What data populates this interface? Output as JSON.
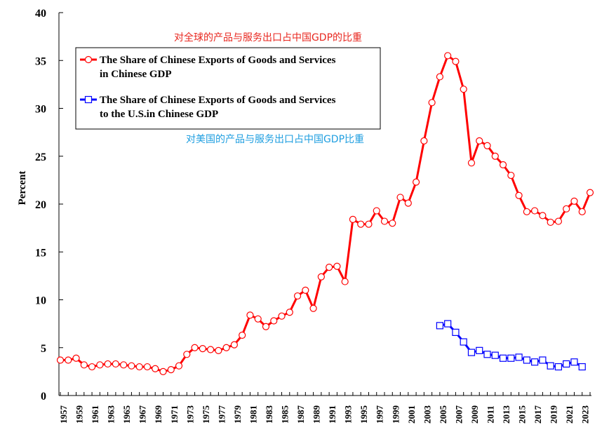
{
  "chart_data": {
    "type": "line",
    "ylabel": "Percent",
    "xlabel": "",
    "ylim": [
      0,
      40
    ],
    "yticks": [
      0,
      5,
      10,
      15,
      20,
      25,
      30,
      35,
      40
    ],
    "xlim": [
      1957,
      2024
    ],
    "xtick_labels": [
      "1957",
      "1959",
      "1961",
      "1963",
      "1965",
      "1967",
      "1969",
      "1971",
      "1973",
      "1975",
      "1977",
      "1979",
      "1981",
      "1983",
      "1985",
      "1987",
      "1989",
      "1991",
      "1993",
      "1995",
      "1997",
      "1999",
      "2001",
      "2003",
      "2005",
      "2007",
      "2009",
      "2011",
      "2013",
      "2015",
      "2017",
      "2019",
      "2021",
      "2023"
    ],
    "grid": false,
    "legend_position": "top-left",
    "annotations": [
      {
        "text": "对全球的产品与服务出口占中国GDP的比重",
        "color": "#e8271f"
      },
      {
        "text": "对美国的产品与服务出口占中国GDP比重",
        "color": "#1e9ee0"
      }
    ],
    "series": [
      {
        "name": "The Share of Chinese Exports of Goods and Services in Chinese GDP",
        "legend_lines": [
          "The Share of Chinese Exports of Goods and Services",
          "in Chinese GDP"
        ],
        "color": "#ff0000",
        "marker": "circle",
        "x": [
          1957,
          1958,
          1959,
          1960,
          1961,
          1962,
          1963,
          1964,
          1965,
          1966,
          1967,
          1968,
          1969,
          1970,
          1971,
          1972,
          1973,
          1974,
          1975,
          1976,
          1977,
          1978,
          1979,
          1980,
          1981,
          1982,
          1983,
          1984,
          1985,
          1986,
          1987,
          1988,
          1989,
          1990,
          1991,
          1992,
          1993,
          1994,
          1995,
          1996,
          1997,
          1998,
          1999,
          2000,
          2001,
          2002,
          2003,
          2004,
          2005,
          2006,
          2007,
          2008,
          2009,
          2010,
          2011,
          2012,
          2013,
          2014,
          2015,
          2016,
          2017,
          2018,
          2019,
          2020,
          2021,
          2022,
          2023,
          2024
        ],
        "values": [
          3.7,
          3.7,
          3.9,
          3.2,
          3.0,
          3.2,
          3.3,
          3.3,
          3.2,
          3.1,
          3.0,
          3.0,
          2.8,
          2.5,
          2.7,
          3.1,
          4.3,
          5.0,
          4.9,
          4.8,
          4.7,
          5.0,
          5.3,
          6.3,
          8.4,
          8.0,
          7.2,
          7.8,
          8.3,
          8.7,
          10.4,
          11.0,
          9.1,
          12.4,
          13.4,
          13.5,
          11.9,
          18.4,
          17.9,
          17.9,
          19.3,
          18.2,
          18.0,
          20.7,
          20.1,
          22.3,
          26.6,
          30.6,
          33.3,
          35.5,
          34.9,
          32.0,
          24.3,
          26.6,
          26.1,
          25.0,
          24.1,
          23.0,
          20.9,
          19.2,
          19.3,
          18.8,
          18.1,
          18.2,
          19.5,
          20.3,
          19.2,
          21.2
        ]
      },
      {
        "name": "The Share of Chinese Exports of Goods and Services to the U.S.in Chinese GDP",
        "legend_lines": [
          "The Share of Chinese Exports of Goods and Services",
          "to the U.S.in Chinese GDP"
        ],
        "color": "#0000ff",
        "marker": "square",
        "x": [
          2005,
          2006,
          2007,
          2008,
          2009,
          2010,
          2011,
          2012,
          2013,
          2014,
          2015,
          2016,
          2017,
          2018,
          2019,
          2020,
          2021,
          2022,
          2023
        ],
        "values": [
          7.3,
          7.5,
          6.6,
          5.6,
          4.5,
          4.7,
          4.3,
          4.2,
          3.9,
          3.9,
          4.0,
          3.7,
          3.5,
          3.7,
          3.1,
          3.0,
          3.3,
          3.5,
          3.0
        ]
      }
    ]
  }
}
